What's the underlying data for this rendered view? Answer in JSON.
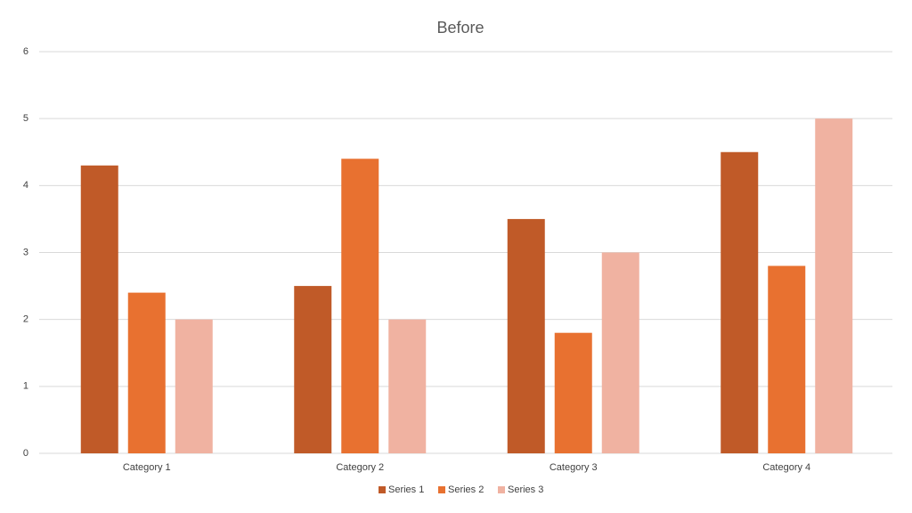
{
  "chart_data": {
    "type": "bar",
    "title": "Before",
    "categories": [
      "Category 1",
      "Category 2",
      "Category 3",
      "Category 4"
    ],
    "series": [
      {
        "name": "Series 1",
        "color": "#c05a28",
        "values": [
          4.3,
          2.5,
          3.5,
          4.5
        ]
      },
      {
        "name": "Series 2",
        "color": "#e87130",
        "values": [
          2.4,
          4.4,
          1.8,
          2.8
        ]
      },
      {
        "name": "Series 3",
        "color": "#f0b2a1",
        "values": [
          2,
          2,
          3,
          5
        ]
      }
    ],
    "ylim": [
      0,
      6
    ],
    "yticks": [
      0,
      1,
      2,
      3,
      4,
      5,
      6
    ],
    "grid": true,
    "legend": "bottom"
  }
}
